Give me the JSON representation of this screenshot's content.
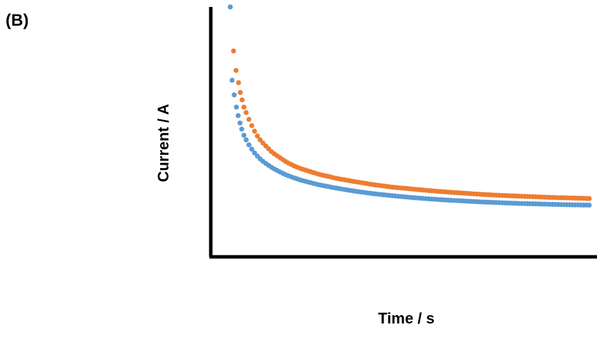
{
  "panel_label": "(B)",
  "chart_data": {
    "type": "scatter",
    "xlabel": "Time / s",
    "ylabel": "Current / A",
    "xlim": [
      0,
      100
    ],
    "ylim": [
      0,
      100
    ],
    "ticks_shown": false,
    "grid": false,
    "legend": "none",
    "series": [
      {
        "color": "#ED7D31",
        "values": [
          [
            0.4,
            100
          ],
          [
            1.3,
            82
          ],
          [
            2.0,
            74
          ],
          [
            2.7,
            69
          ],
          [
            3.2,
            65
          ],
          [
            3.7,
            62
          ],
          [
            4.2,
            59
          ],
          [
            5,
            56
          ],
          [
            6,
            52.5
          ],
          [
            7,
            49.5
          ],
          [
            8,
            47
          ],
          [
            9,
            45
          ],
          [
            10,
            43.5
          ],
          [
            12,
            40.5
          ],
          [
            14,
            38.5
          ],
          [
            16,
            36.5
          ],
          [
            18,
            35
          ],
          [
            20,
            33.8
          ],
          [
            25,
            31.5
          ],
          [
            30,
            29.8
          ],
          [
            35,
            28.5
          ],
          [
            40,
            27.3
          ],
          [
            45,
            26.3
          ],
          [
            50,
            25.6
          ],
          [
            55,
            24.9
          ],
          [
            60,
            24.3
          ],
          [
            65,
            23.8
          ],
          [
            70,
            23.3
          ],
          [
            75,
            22.9
          ],
          [
            80,
            22.6
          ],
          [
            85,
            22.3
          ],
          [
            90,
            22.0
          ],
          [
            95,
            21.8
          ],
          [
            100,
            21.6
          ]
        ]
      },
      {
        "color": "#5B9BD5",
        "values": [
          [
            0.4,
            100
          ],
          [
            0.9,
            70
          ],
          [
            1.5,
            64
          ],
          [
            2.1,
            59
          ],
          [
            2.6,
            55.5
          ],
          [
            3.1,
            52.5
          ],
          [
            3.6,
            50
          ],
          [
            4.2,
            47.5
          ],
          [
            5,
            45
          ],
          [
            6,
            42.5
          ],
          [
            7,
            40.5
          ],
          [
            8,
            38.8
          ],
          [
            9,
            37.4
          ],
          [
            10,
            36.2
          ],
          [
            12,
            34.2
          ],
          [
            14,
            32.6
          ],
          [
            16,
            31.2
          ],
          [
            18,
            30.1
          ],
          [
            20,
            29.1
          ],
          [
            25,
            27.2
          ],
          [
            30,
            25.8
          ],
          [
            35,
            24.6
          ],
          [
            40,
            23.6
          ],
          [
            45,
            22.8
          ],
          [
            50,
            22.1
          ],
          [
            55,
            21.5
          ],
          [
            60,
            21.0
          ],
          [
            65,
            20.6
          ],
          [
            70,
            20.2
          ],
          [
            75,
            19.9
          ],
          [
            80,
            19.6
          ],
          [
            85,
            19.4
          ],
          [
            90,
            19.2
          ],
          [
            95,
            19.0
          ],
          [
            100,
            18.9
          ]
        ]
      }
    ]
  }
}
